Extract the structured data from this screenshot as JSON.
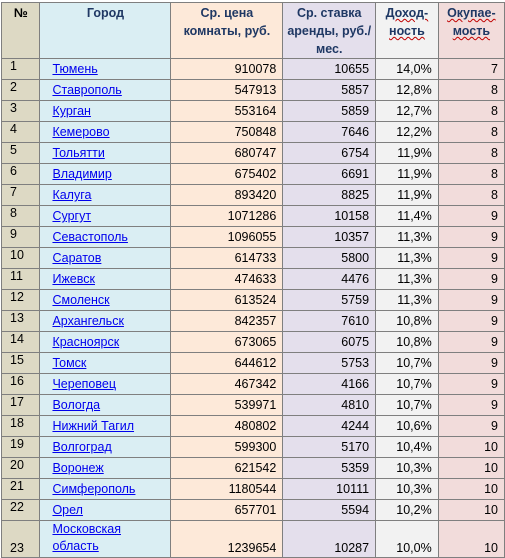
{
  "headers": {
    "num": "№",
    "city": "Город",
    "price": "Ср. цена комнаты, руб.",
    "rent": "Ср. ставка аренды, руб./мес.",
    "yield": "Доход-ность",
    "payback": "Окупае-мость"
  },
  "rows": [
    {
      "num": "1",
      "city": "Тюмень",
      "price": "910078",
      "rent": "10655",
      "yield": "14,0%",
      "payback": "7"
    },
    {
      "num": "2",
      "city": "Ставрополь",
      "price": "547913",
      "rent": "5857",
      "yield": "12,8%",
      "payback": "8"
    },
    {
      "num": "3",
      "city": "Курган",
      "price": "553164",
      "rent": "5859",
      "yield": "12,7%",
      "payback": "8"
    },
    {
      "num": "4",
      "city": "Кемерово",
      "price": "750848",
      "rent": "7646",
      "yield": "12,2%",
      "payback": "8"
    },
    {
      "num": "5",
      "city": "Тольятти",
      "price": "680747",
      "rent": "6754",
      "yield": "11,9%",
      "payback": "8"
    },
    {
      "num": "6",
      "city": "Владимир",
      "price": "675402",
      "rent": "6691",
      "yield": "11,9%",
      "payback": "8"
    },
    {
      "num": "7",
      "city": "Калуга",
      "price": "893420",
      "rent": "8825",
      "yield": "11,9%",
      "payback": "8"
    },
    {
      "num": "8",
      "city": "Сургут",
      "price": "1071286",
      "rent": "10158",
      "yield": "11,4%",
      "payback": "9"
    },
    {
      "num": "9",
      "city": "Севастополь",
      "price": "1096055",
      "rent": "10357",
      "yield": "11,3%",
      "payback": "9"
    },
    {
      "num": "10",
      "city": "Саратов",
      "price": "614733",
      "rent": "5800",
      "yield": "11,3%",
      "payback": "9"
    },
    {
      "num": "11",
      "city": "Ижевск",
      "price": "474633",
      "rent": "4476",
      "yield": "11,3%",
      "payback": "9"
    },
    {
      "num": "12",
      "city": "Смоленск",
      "price": "613524",
      "rent": "5759",
      "yield": "11,3%",
      "payback": "9"
    },
    {
      "num": "13",
      "city": "Архангельск",
      "price": "842357",
      "rent": "7610",
      "yield": "10,8%",
      "payback": "9"
    },
    {
      "num": "14",
      "city": "Красноярск",
      "price": "673065",
      "rent": "6075",
      "yield": "10,8%",
      "payback": "9"
    },
    {
      "num": "15",
      "city": "Томск",
      "price": "644612",
      "rent": "5753",
      "yield": "10,7%",
      "payback": "9"
    },
    {
      "num": "16",
      "city": "Череповец",
      "price": "467342",
      "rent": "4166",
      "yield": "10,7%",
      "payback": "9"
    },
    {
      "num": "17",
      "city": "Вологда",
      "price": "539971",
      "rent": "4810",
      "yield": "10,7%",
      "payback": "9"
    },
    {
      "num": "18",
      "city": "Нижний Тагил",
      "price": "480802",
      "rent": "4244",
      "yield": "10,6%",
      "payback": "9"
    },
    {
      "num": "19",
      "city": "Волгоград",
      "price": "599300",
      "rent": "5170",
      "yield": "10,4%",
      "payback": "10"
    },
    {
      "num": "20",
      "city": "Воронеж",
      "price": "621542",
      "rent": "5359",
      "yield": "10,3%",
      "payback": "10"
    },
    {
      "num": "21",
      "city": "Симферополь",
      "price": "1180544",
      "rent": "10111",
      "yield": "10,3%",
      "payback": "10"
    },
    {
      "num": "22",
      "city": "Орел",
      "price": "657701",
      "rent": "5594",
      "yield": "10,2%",
      "payback": "10"
    },
    {
      "num": "23",
      "city": "Московская область",
      "price": "1239654",
      "rent": "10287",
      "yield": "10,0%",
      "payback": "10"
    }
  ]
}
